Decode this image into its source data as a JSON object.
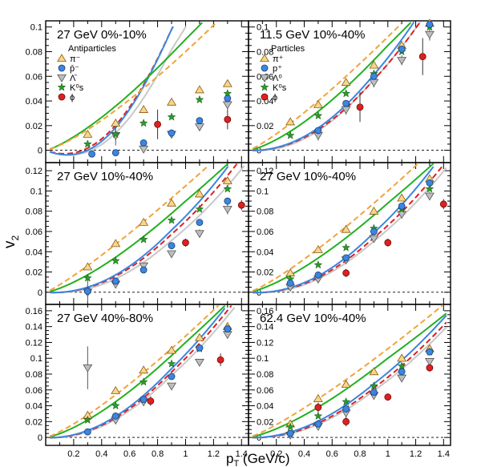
{
  "chart_data": {
    "type": "scatter",
    "y_axis_label": "v",
    "y_axis_label_sub": "2",
    "x_axis_label_pre": "p",
    "x_axis_label_sub": "T",
    "x_axis_label_post": " (GeV/c)",
    "x_range": [
      0,
      1.45
    ],
    "x_ticks": [
      "0.2",
      "0.4",
      "0.6",
      "0.8",
      "1",
      "1.2",
      "1.4"
    ],
    "colors": {
      "pion": "#f2a33a",
      "proton": "#3a86e0",
      "lambda": "#b3b3b3",
      "kaon": "#2aa02a",
      "phi": "#e02020",
      "pion_curve": "#f2a33a",
      "proton_curve": "#3a86e0",
      "lambda_curve": "#c8c8c8",
      "kaon_curve": "#22b022",
      "phi_curve": "#e02020"
    },
    "panels": [
      {
        "id": "p1",
        "title": "27 GeV 0%-10%",
        "ylim": [
          -0.01,
          0.105
        ],
        "yticks": [
          "0",
          "0.02",
          "0.04",
          "0.06",
          "0.08",
          "0.1"
        ],
        "legend_header": "Antiparticles",
        "legend": [
          {
            "key": "pion",
            "label": "π⁻"
          },
          {
            "key": "proton",
            "label": "p̄⁻"
          },
          {
            "key": "lambda",
            "label": "Λ̄"
          },
          {
            "key": "kaon",
            "label": "K⁰s"
          },
          {
            "key": "phi",
            "label": "ϕ"
          }
        ],
        "pion": [
          [
            0.3,
            0.013
          ],
          [
            0.5,
            0.022
          ],
          [
            0.7,
            0.033
          ],
          [
            0.9,
            0.039
          ],
          [
            1.1,
            0.049
          ],
          [
            1.3,
            0.054
          ]
        ],
        "proton": [
          [
            0.33,
            -0.003
          ],
          [
            0.5,
            -0.002
          ],
          [
            0.7,
            0.006
          ],
          [
            0.9,
            0.014
          ],
          [
            1.1,
            0.024
          ],
          [
            1.3,
            0.042
          ]
        ],
        "lambda": [
          [
            0.5,
            0.012
          ],
          [
            0.7,
            0.001
          ],
          [
            0.9,
            0.013
          ],
          [
            1.1,
            0.019
          ],
          [
            1.3,
            0.037
          ]
        ],
        "kaon": [
          [
            0.3,
            0.005
          ],
          [
            0.5,
            0.013
          ],
          [
            0.7,
            0.022
          ],
          [
            0.9,
            0.027
          ],
          [
            1.1,
            0.041
          ],
          [
            1.3,
            0.046
          ]
        ],
        "phi": [
          [
            0.8,
            0.021
          ],
          [
            1.3,
            0.025
          ]
        ],
        "phi_err": [
          0.012,
          0.008
        ],
        "lambda_err": [
          0.008,
          0.003,
          0.003,
          0.003,
          0.004
        ],
        "curves": {
          "pion": [
            0.08,
            0.0,
            1.3,
            0.04
          ],
          "kaon": [
            0.09,
            -0.002,
            1.25,
            0.028
          ],
          "proton": [
            0.12,
            -0.014,
            1.9,
            0.0
          ],
          "phi": [
            0.12,
            -0.012,
            1.9,
            0.0
          ],
          "lambda": [
            0.1,
            -0.013,
            1.9,
            0.0
          ]
        }
      },
      {
        "id": "p2",
        "title": "11.5 GeV 10%-40%",
        "ylim": [
          -0.01,
          0.105
        ],
        "yticks": [
          "0",
          "0.02",
          "0.04",
          "0.06",
          "0.08",
          "0.1"
        ],
        "legend_header": "Particles",
        "legend": [
          {
            "key": "pion",
            "label": "π⁺"
          },
          {
            "key": "proton",
            "label": "p⁺"
          },
          {
            "key": "lambda",
            "label": "Λ⁰"
          },
          {
            "key": "kaon",
            "label": "K⁰s"
          },
          {
            "key": "phi",
            "label": "ϕ"
          }
        ],
        "pion": [
          [
            0.3,
            0.023
          ],
          [
            0.5,
            0.037
          ],
          [
            0.7,
            0.055
          ],
          [
            0.9,
            0.069
          ],
          [
            1.1,
            0.085
          ],
          [
            1.3,
            0.103
          ]
        ],
        "proton": [
          [
            0.5,
            0.016
          ],
          [
            0.7,
            0.038
          ],
          [
            0.9,
            0.06
          ],
          [
            1.1,
            0.082
          ],
          [
            1.3,
            0.102
          ]
        ],
        "lambda": [
          [
            0.5,
            0.012
          ],
          [
            0.7,
            0.033
          ],
          [
            0.9,
            0.055
          ],
          [
            1.1,
            0.073
          ],
          [
            1.3,
            0.094
          ]
        ],
        "kaon": [
          [
            0.3,
            0.012
          ],
          [
            0.5,
            0.028
          ],
          [
            0.7,
            0.046
          ],
          [
            0.9,
            0.062
          ],
          [
            1.1,
            0.08
          ],
          [
            1.3,
            0.1
          ]
        ],
        "phi": [
          [
            0.8,
            0.035
          ],
          [
            1.25,
            0.076
          ]
        ],
        "phi_err": [
          0.012,
          0.015
        ],
        "lambda_err": [
          0.004,
          0.004,
          0.004,
          0.004,
          0.005
        ],
        "curves": {
          "pion": [
            0.092,
            0.0,
            1.2,
            0.0
          ],
          "kaon": [
            0.085,
            -0.003,
            1.3,
            0.0
          ],
          "proton": [
            0.075,
            -0.002,
            1.9,
            0.0
          ],
          "phi": [
            0.07,
            -0.002,
            1.9,
            0.0
          ],
          "lambda": [
            0.07,
            -0.003,
            1.9,
            0.0
          ]
        }
      },
      {
        "id": "p3",
        "title": "27 GeV 10%-40%",
        "ylim": [
          -0.012,
          0.128
        ],
        "yticks": [
          "0",
          "0.02",
          "0.04",
          "0.06",
          "0.08",
          "0.1",
          "0.12"
        ],
        "pion": [
          [
            0.3,
            0.025
          ],
          [
            0.5,
            0.048
          ],
          [
            0.7,
            0.069
          ],
          [
            0.9,
            0.088
          ],
          [
            1.1,
            0.097
          ],
          [
            1.3,
            0.11
          ]
        ],
        "proton": [
          [
            0.3,
            0.001
          ],
          [
            0.5,
            0.011
          ],
          [
            0.7,
            0.022
          ],
          [
            0.9,
            0.046
          ],
          [
            1.1,
            0.069
          ],
          [
            1.3,
            0.09
          ]
        ],
        "lambda": [
          [
            0.3,
            0.0
          ],
          [
            0.5,
            0.008
          ],
          [
            0.7,
            0.026
          ],
          [
            0.9,
            0.038
          ],
          [
            1.1,
            0.058
          ],
          [
            1.3,
            0.082
          ]
        ],
        "kaon": [
          [
            0.3,
            0.014
          ],
          [
            0.5,
            0.031
          ],
          [
            0.7,
            0.052
          ],
          [
            0.9,
            0.071
          ],
          [
            1.1,
            0.082
          ],
          [
            1.3,
            0.102
          ]
        ],
        "phi": [
          [
            1.0,
            0.049
          ],
          [
            1.4,
            0.086
          ]
        ],
        "phi_err": [
          0.004,
          0.005
        ],
        "lambda_err": [
          0.012,
          0.004,
          0.003,
          0.003,
          0.004,
          0.005
        ],
        "curves": {
          "pion": [
            0.105,
            0.0,
            1.15,
            0.0
          ],
          "kaon": [
            0.09,
            -0.002,
            1.3,
            0.0
          ],
          "proton": [
            0.075,
            -0.003,
            1.9,
            0.0
          ],
          "phi": [
            0.07,
            -0.003,
            1.9,
            0.0
          ],
          "lambda": [
            0.063,
            -0.003,
            1.95,
            0.0
          ]
        }
      },
      {
        "id": "p4",
        "title": "27 GeV 10%-40%",
        "ylim": [
          -0.012,
          0.128
        ],
        "yticks": [
          "0",
          "0.02",
          "0.04",
          "0.06",
          "0.08",
          "0.1",
          "0.12"
        ],
        "pion": [
          [
            0.3,
            0.019
          ],
          [
            0.5,
            0.042
          ],
          [
            0.7,
            0.062
          ],
          [
            0.9,
            0.08
          ],
          [
            1.1,
            0.093
          ],
          [
            1.3,
            0.112
          ]
        ],
        "proton": [
          [
            0.3,
            0.009
          ],
          [
            0.5,
            0.017
          ],
          [
            0.7,
            0.034
          ],
          [
            0.9,
            0.06
          ],
          [
            1.1,
            0.085
          ],
          [
            1.3,
            0.108
          ]
        ],
        "lambda": [
          [
            0.3,
            0.005
          ],
          [
            0.5,
            0.013
          ],
          [
            0.7,
            0.032
          ],
          [
            0.9,
            0.053
          ],
          [
            1.1,
            0.077
          ],
          [
            1.3,
            0.095
          ]
        ],
        "kaon": [
          [
            0.3,
            0.013
          ],
          [
            0.5,
            0.027
          ],
          [
            0.7,
            0.044
          ],
          [
            0.9,
            0.063
          ],
          [
            1.1,
            0.082
          ],
          [
            1.3,
            0.102
          ]
        ],
        "phi": [
          [
            0.7,
            0.019
          ],
          [
            1.0,
            0.049
          ],
          [
            1.4,
            0.087
          ]
        ],
        "phi_err": [
          0.004,
          0.004,
          0.005
        ],
        "lambda_err": [
          0.004,
          0.003,
          0.003,
          0.003,
          0.003,
          0.004
        ],
        "curves": {
          "pion": [
            0.1,
            0.0,
            1.22,
            0.0
          ],
          "kaon": [
            0.088,
            -0.002,
            1.3,
            0.0
          ],
          "proton": [
            0.072,
            -0.003,
            1.92,
            0.0
          ],
          "phi": [
            0.066,
            -0.003,
            1.92,
            0.0
          ],
          "lambda": [
            0.062,
            -0.003,
            1.95,
            0.0
          ]
        }
      },
      {
        "id": "p5",
        "title": "27 GeV 40%-80%",
        "ylim": [
          -0.01,
          0.168
        ],
        "yticks": [
          "0",
          "0.02",
          "0.04",
          "0.06",
          "0.08",
          "0.1",
          "0.12",
          "0.14",
          "0.16"
        ],
        "pion": [
          [
            0.3,
            0.028
          ],
          [
            0.5,
            0.059
          ],
          [
            0.7,
            0.085
          ],
          [
            0.9,
            0.11
          ],
          [
            1.1,
            0.126
          ],
          [
            1.3,
            0.14
          ]
        ],
        "proton": [
          [
            0.3,
            0.007
          ],
          [
            0.5,
            0.027
          ],
          [
            0.7,
            0.048
          ],
          [
            0.9,
            0.077
          ],
          [
            1.1,
            0.113
          ],
          [
            1.3,
            0.137
          ]
        ],
        "lambda": [
          [
            0.3,
            0.088
          ],
          [
            0.5,
            0.022
          ],
          [
            0.7,
            0.045
          ],
          [
            0.9,
            0.065
          ],
          [
            1.1,
            0.095
          ],
          [
            1.3,
            0.13
          ]
        ],
        "kaon": [
          [
            0.3,
            0.022
          ],
          [
            0.5,
            0.04
          ],
          [
            0.7,
            0.07
          ],
          [
            0.9,
            0.093
          ],
          [
            1.1,
            0.112
          ],
          [
            1.3,
            0.137
          ]
        ],
        "phi": [
          [
            0.75,
            0.046
          ],
          [
            1.25,
            0.098
          ]
        ],
        "phi_err": [
          0.006,
          0.008
        ],
        "lambda_err": [
          0.027,
          0.005,
          0.004,
          0.004,
          0.004,
          0.005
        ],
        "curves": {
          "pion": [
            0.128,
            0.0,
            1.25,
            0.0
          ],
          "kaon": [
            0.12,
            -0.003,
            1.32,
            0.0
          ],
          "proton": [
            0.105,
            -0.004,
            1.78,
            0.0
          ],
          "phi": [
            0.1,
            -0.004,
            1.8,
            0.0
          ],
          "lambda": [
            0.095,
            -0.004,
            1.82,
            0.0
          ]
        }
      },
      {
        "id": "p6",
        "title": "62.4 GeV 10%-40%",
        "ylim": [
          -0.01,
          0.168
        ],
        "yticks": [
          "0",
          "0.02",
          "0.04",
          "0.06",
          "0.08",
          "0.1",
          "0.12",
          "0.14",
          "0.16"
        ],
        "pion": [
          [
            0.3,
            0.017
          ],
          [
            0.5,
            0.049
          ],
          [
            0.7,
            0.067
          ],
          [
            0.9,
            0.083
          ],
          [
            1.1,
            0.1
          ],
          [
            1.3,
            0.112
          ]
        ],
        "proton": [
          [
            0.3,
            0.005
          ],
          [
            0.5,
            0.017
          ],
          [
            0.7,
            0.036
          ],
          [
            0.9,
            0.057
          ],
          [
            1.1,
            0.083
          ],
          [
            1.3,
            0.108
          ]
        ],
        "lambda": [
          [
            0.3,
            0.003
          ],
          [
            0.5,
            0.014
          ],
          [
            0.7,
            0.031
          ],
          [
            0.9,
            0.053
          ],
          [
            1.1,
            0.075
          ],
          [
            1.3,
            0.096
          ]
        ],
        "kaon": [
          [
            0.3,
            0.013
          ],
          [
            0.5,
            0.027
          ],
          [
            0.7,
            0.045
          ],
          [
            0.9,
            0.065
          ],
          [
            1.1,
            0.09
          ],
          [
            1.3,
            0.108
          ]
        ],
        "phi": [
          [
            0.5,
            0.038
          ],
          [
            0.7,
            0.02
          ],
          [
            1.0,
            0.051
          ],
          [
            1.3,
            0.088
          ]
        ],
        "phi_err": [
          0.006,
          0.006,
          0.004,
          0.005
        ],
        "lambda_err": [
          0.004,
          0.003,
          0.003,
          0.003,
          0.003,
          0.004
        ],
        "curves": {
          "pion": [
            0.112,
            0.0,
            1.2,
            0.0
          ],
          "kaon": [
            0.1,
            -0.003,
            1.28,
            0.0
          ],
          "proton": [
            0.082,
            -0.003,
            1.8,
            0.0
          ],
          "phi": [
            0.076,
            -0.003,
            1.85,
            0.0
          ],
          "lambda": [
            0.072,
            -0.003,
            1.88,
            0.0
          ]
        }
      }
    ]
  }
}
